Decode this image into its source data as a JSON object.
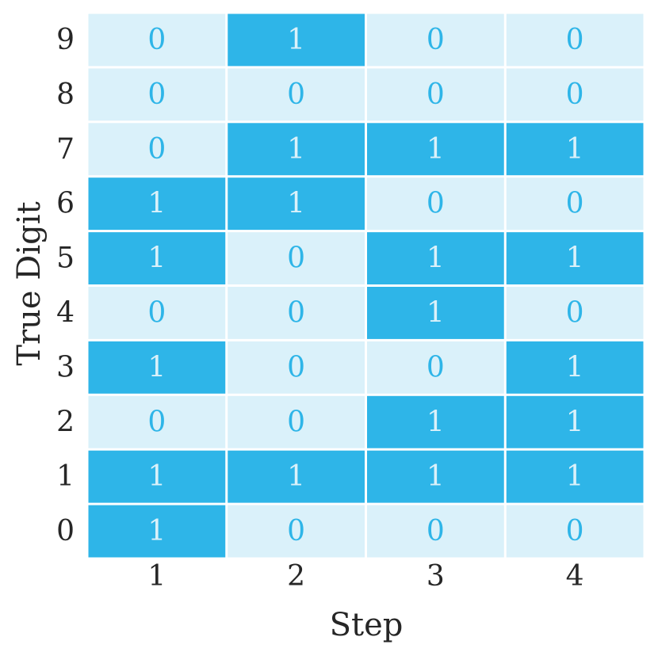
{
  "chart_data": {
    "type": "heatmap",
    "title": "",
    "xlabel": "Step",
    "ylabel": "True Digit",
    "x_categories": [
      "1",
      "2",
      "3",
      "4"
    ],
    "y_categories": [
      "0",
      "1",
      "2",
      "3",
      "4",
      "5",
      "6",
      "7",
      "8",
      "9"
    ],
    "values": [
      [
        1,
        0,
        0,
        0
      ],
      [
        1,
        1,
        1,
        1
      ],
      [
        0,
        0,
        1,
        1
      ],
      [
        1,
        0,
        0,
        1
      ],
      [
        0,
        0,
        1,
        0
      ],
      [
        1,
        0,
        1,
        1
      ],
      [
        1,
        1,
        0,
        0
      ],
      [
        0,
        1,
        1,
        1
      ],
      [
        0,
        0,
        0,
        0
      ],
      [
        0,
        1,
        0,
        0
      ]
    ],
    "value_range": [
      0,
      1
    ],
    "colors": {
      "low_fill": "#daf1fa",
      "high_fill": "#2eb5e8",
      "low_text": "#2eb5e8",
      "high_text": "#daf1fa",
      "grid_line": "#ffffff"
    }
  }
}
